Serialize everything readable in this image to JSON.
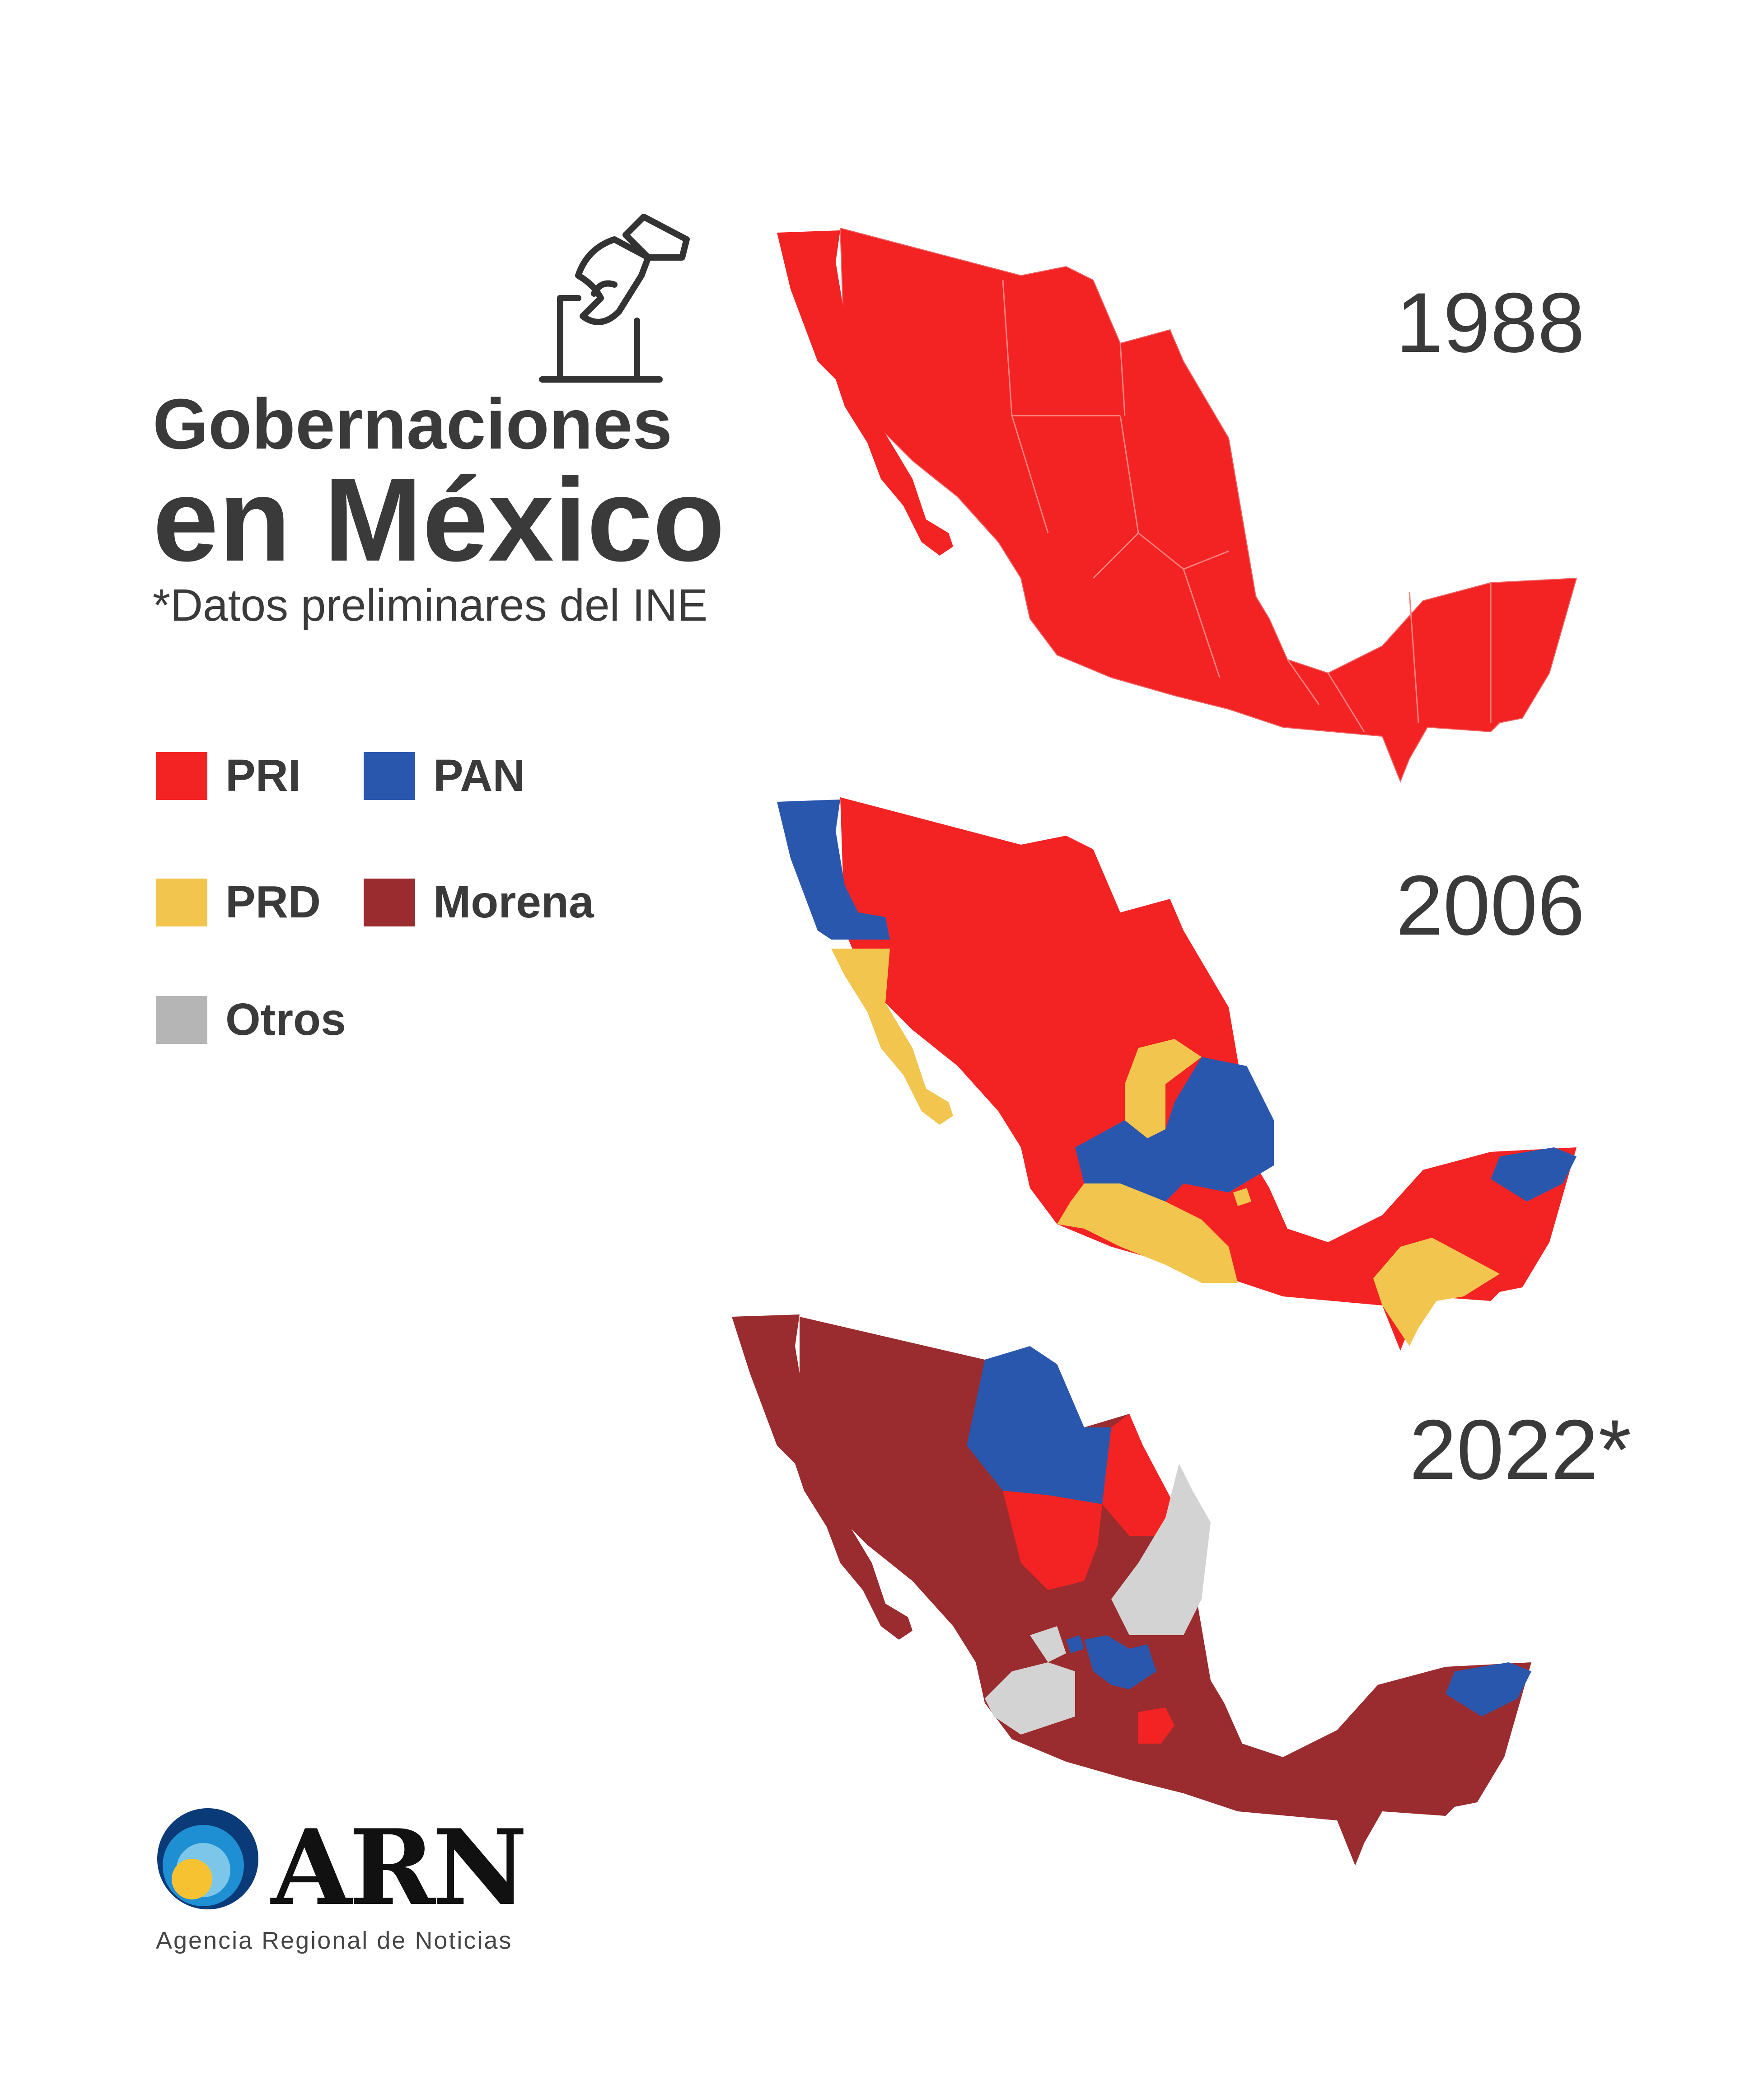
{
  "title": {
    "line1": "Gobernaciones",
    "line2": "en México",
    "subtitle": "*Datos preliminares del INE"
  },
  "legend": [
    {
      "party": "PRI",
      "color": "#f42323"
    },
    {
      "party": "PAN",
      "color": "#2a57ae"
    },
    {
      "party": "PRD",
      "color": "#f2c54e"
    },
    {
      "party": "Morena",
      "color": "#9a2b2e"
    },
    {
      "party": "Otros",
      "color": "#b5b5b5"
    }
  ],
  "maps": [
    {
      "year": "1988",
      "regions": [
        {
          "name": "México",
          "party": "PRI"
        }
      ]
    },
    {
      "year": "2006",
      "regions": [
        {
          "name": "Baja California",
          "party": "PAN"
        },
        {
          "name": "Baja California Sur",
          "party": "PRD"
        },
        {
          "name": "Zacatecas",
          "party": "PRD"
        },
        {
          "name": "Michoacán",
          "party": "PRD"
        },
        {
          "name": "Guerrero",
          "party": "PRD"
        },
        {
          "name": "Chiapas",
          "party": "PRD"
        },
        {
          "name": "Ciudad de México",
          "party": "PRD"
        },
        {
          "name": "San Luis Potosí",
          "party": "PAN"
        },
        {
          "name": "Guanajuato",
          "party": "PAN"
        },
        {
          "name": "Querétaro",
          "party": "PAN"
        },
        {
          "name": "Aguascalientes",
          "party": "PAN"
        },
        {
          "name": "Jalisco",
          "party": "PAN"
        },
        {
          "name": "Morelos",
          "party": "PAN"
        },
        {
          "name": "Yucatán",
          "party": "PAN"
        },
        {
          "name": "Resto del país",
          "party": "PRI"
        }
      ]
    },
    {
      "year": "2022*",
      "regions": [
        {
          "name": "Chihuahua",
          "party": "PAN"
        },
        {
          "name": "Querétaro",
          "party": "PAN"
        },
        {
          "name": "Guanajuato",
          "party": "PAN"
        },
        {
          "name": "Aguascalientes",
          "party": "PAN"
        },
        {
          "name": "Yucatán",
          "party": "PAN"
        },
        {
          "name": "Coahuila",
          "party": "PRI"
        },
        {
          "name": "Durango",
          "party": "PRI"
        },
        {
          "name": "Estado de México",
          "party": "PRI"
        },
        {
          "name": "Nuevo León",
          "party": "Otros"
        },
        {
          "name": "San Luis Potosí",
          "party": "Otros"
        },
        {
          "name": "Jalisco",
          "party": "Otros"
        },
        {
          "name": "Resto del país",
          "party": "Morena"
        }
      ]
    }
  ],
  "logo": {
    "text": "ARN",
    "tagline": "Agencia Regional de Noticias",
    "colors": {
      "outer": "#0b3a78",
      "middle": "#1f8fd3",
      "dot": "#f6c232"
    }
  }
}
